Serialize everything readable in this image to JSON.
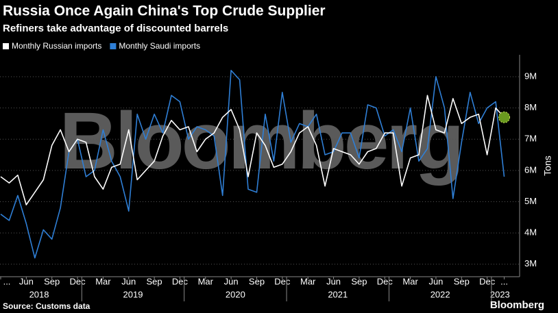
{
  "chart_data": {
    "type": "line",
    "title": "Russia Once Again China's Top Crude Supplier",
    "subtitle": "Refiners take advantage of discounted barrels",
    "source": "Source: Customs data",
    "brand": "Bloomberg",
    "watermark": "Bloomberg",
    "y_label": "Tons",
    "x": [
      "2018-03",
      "2018-04",
      "2018-05",
      "2018-06",
      "2018-07",
      "2018-08",
      "2018-09",
      "2018-10",
      "2018-11",
      "2018-12",
      "2019-01",
      "2019-02",
      "2019-03",
      "2019-04",
      "2019-05",
      "2019-06",
      "2019-07",
      "2019-08",
      "2019-09",
      "2019-10",
      "2019-11",
      "2019-12",
      "2020-01",
      "2020-02",
      "2020-03",
      "2020-04",
      "2020-05",
      "2020-06",
      "2020-07",
      "2020-08",
      "2020-09",
      "2020-10",
      "2020-11",
      "2020-12",
      "2021-01",
      "2021-02",
      "2021-03",
      "2021-04",
      "2021-05",
      "2021-06",
      "2021-07",
      "2021-08",
      "2021-09",
      "2021-10",
      "2021-11",
      "2021-12",
      "2022-01",
      "2022-02",
      "2022-03",
      "2022-04",
      "2022-05",
      "2022-06",
      "2022-07",
      "2022-08",
      "2022-09",
      "2022-10",
      "2022-11",
      "2022-12",
      "2023-01",
      "2023-02"
    ],
    "series": [
      {
        "name": "Monthly Russian imports",
        "color": "#ffffff",
        "values": [
          5.8,
          5.6,
          5.85,
          4.9,
          5.3,
          5.7,
          6.8,
          7.3,
          6.6,
          7.0,
          6.9,
          5.8,
          5.4,
          6.1,
          6.2,
          7.3,
          5.7,
          6.0,
          6.3,
          7.1,
          7.6,
          7.3,
          7.4,
          6.6,
          7.0,
          7.2,
          7.7,
          7.95,
          7.3,
          5.8,
          7.2,
          6.8,
          6.1,
          6.2,
          6.6,
          7.2,
          7.4,
          6.8,
          5.5,
          6.7,
          6.6,
          6.5,
          6.2,
          6.6,
          6.7,
          7.2,
          7.2,
          5.5,
          6.4,
          6.5,
          8.4,
          7.3,
          7.2,
          8.3,
          7.5,
          7.7,
          7.8,
          6.5,
          8.0,
          7.7
        ]
      },
      {
        "name": "Monthly Saudi imports",
        "color": "#2f7fd6",
        "values": [
          4.6,
          4.4,
          5.2,
          4.3,
          3.2,
          4.1,
          3.8,
          4.8,
          6.6,
          7.0,
          5.8,
          6.0,
          7.3,
          6.3,
          5.8,
          4.7,
          7.8,
          7.0,
          7.8,
          7.2,
          8.4,
          8.2,
          7.0,
          7.4,
          7.3,
          7.1,
          5.2,
          9.2,
          8.9,
          5.4,
          5.3,
          7.8,
          6.3,
          8.5,
          6.9,
          7.5,
          7.4,
          7.8,
          6.5,
          6.6,
          7.2,
          7.2,
          6.4,
          8.1,
          8.0,
          7.1,
          7.3,
          6.6,
          8.0,
          6.3,
          6.7,
          9.0,
          8.0,
          5.1,
          6.9,
          8.5,
          7.5,
          8.0,
          8.2,
          5.8
        ]
      }
    ],
    "ylim": [
      2.6,
      9.7
    ],
    "yticks": [
      {
        "value": 3,
        "label": "3M"
      },
      {
        "value": 4,
        "label": "4M"
      },
      {
        "value": 5,
        "label": "5M"
      },
      {
        "value": 6,
        "label": "6M"
      },
      {
        "value": 7,
        "label": "7M"
      },
      {
        "value": 8,
        "label": "8M"
      },
      {
        "value": 9,
        "label": "9M"
      }
    ],
    "xticks": [
      {
        "value": "2018-03",
        "label": "..."
      },
      {
        "value": "2018-06",
        "label": "Jun"
      },
      {
        "value": "2018-09",
        "label": "Sep"
      },
      {
        "value": "2018-12",
        "label": "Dec"
      },
      {
        "value": "2019-03",
        "label": "Mar"
      },
      {
        "value": "2019-06",
        "label": "Jun"
      },
      {
        "value": "2019-09",
        "label": "Sep"
      },
      {
        "value": "2019-12",
        "label": "Dec"
      },
      {
        "value": "2020-03",
        "label": "Mar"
      },
      {
        "value": "2020-06",
        "label": "Jun"
      },
      {
        "value": "2020-09",
        "label": "Sep"
      },
      {
        "value": "2020-12",
        "label": "Dec"
      },
      {
        "value": "2021-03",
        "label": "Mar"
      },
      {
        "value": "2021-06",
        "label": "Jun"
      },
      {
        "value": "2021-09",
        "label": "Sep"
      },
      {
        "value": "2021-12",
        "label": "Dec"
      },
      {
        "value": "2022-03",
        "label": "Mar"
      },
      {
        "value": "2022-06",
        "label": "Jun"
      },
      {
        "value": "2022-09",
        "label": "Sep"
      },
      {
        "value": "2022-12",
        "label": "Dec"
      },
      {
        "value": "2023-02",
        "label": "..."
      }
    ],
    "years": [
      "2018",
      "2019",
      "2020",
      "2021",
      "2022",
      "2023"
    ],
    "grid": true
  }
}
